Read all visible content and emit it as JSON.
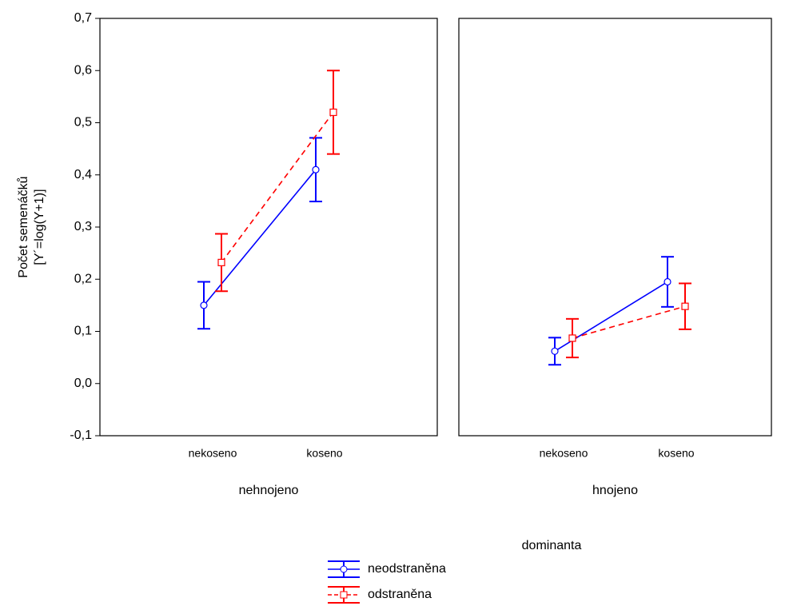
{
  "chart_data": [
    {
      "type": "line",
      "ylabel": "Počet semenáčků\n[Y´=log(Y+1)]",
      "xlabel": "nehnojeno",
      "categories": [
        "nekoseno",
        "koseno"
      ],
      "legend_title": "dominanta",
      "ylim": [
        -0.1,
        0.7
      ],
      "yticks": [
        {
          "value": -0.1,
          "label": "-0,1"
        },
        {
          "value": 0,
          "label": "0,0"
        },
        {
          "value": 0.1,
          "label": "0,1"
        },
        {
          "value": 0.2,
          "label": "0,2"
        },
        {
          "value": 0.3,
          "label": "0,3"
        },
        {
          "value": 0.4,
          "label": "0,4"
        },
        {
          "value": 0.5,
          "label": "0,5"
        },
        {
          "value": 0.6,
          "label": "0,6"
        },
        {
          "value": 0.7,
          "label": "0,7"
        }
      ],
      "series": [
        {
          "name": "neodstraněna",
          "color": "#0000ff",
          "values": [
            0.15,
            0.41
          ],
          "errors": [
            0.045,
            0.061
          ]
        },
        {
          "name": "odstraněna",
          "color": "#ff0000",
          "values": [
            0.232,
            0.52
          ],
          "errors": [
            0.055,
            0.08
          ]
        }
      ]
    },
    {
      "type": "line",
      "xlabel": "hnojeno",
      "categories": [
        "nekoseno",
        "koseno"
      ],
      "ylim": [
        -0.1,
        0.7
      ],
      "series": [
        {
          "color": "#0000ff",
          "values": [
            0.062,
            0.195
          ],
          "errors": [
            0.026,
            0.048
          ]
        },
        {
          "color": "#ff0000",
          "values": [
            0.087,
            0.148
          ],
          "errors": [
            0.037,
            0.044
          ]
        }
      ]
    }
  ]
}
